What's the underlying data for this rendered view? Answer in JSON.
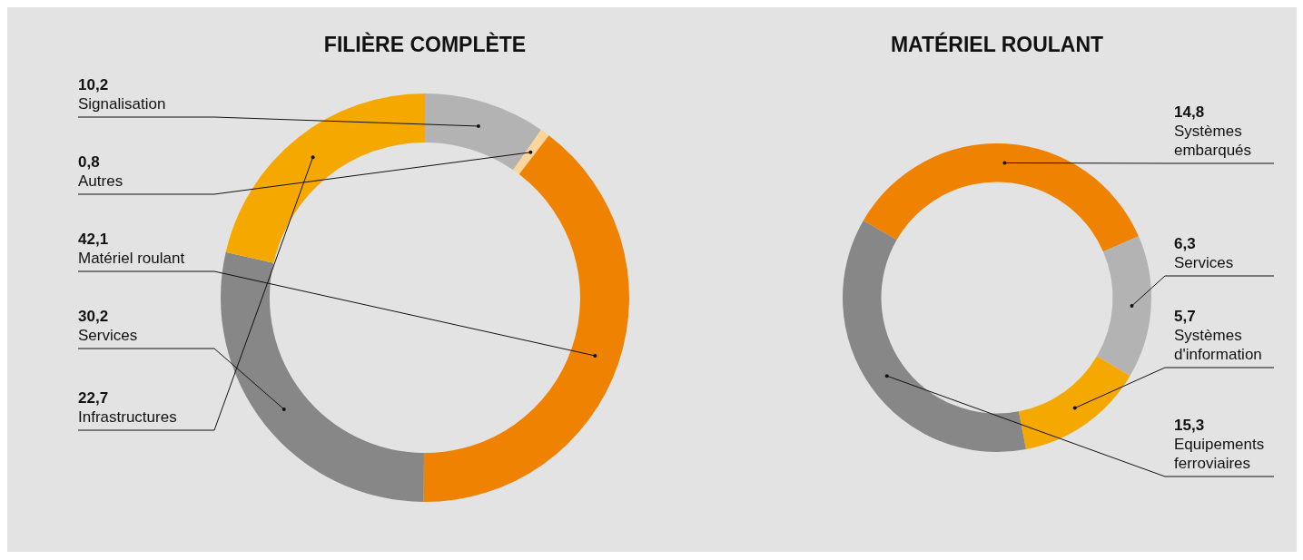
{
  "chart_data": [
    {
      "type": "donut",
      "title": "FILIÈRE COMPLÈTE",
      "categories": [
        "Signalisation",
        "Autres",
        "Matériel roulant",
        "Services",
        "Infrastructures"
      ],
      "values": [
        10.2,
        0.8,
        42.1,
        30.2,
        22.7
      ],
      "colors": [
        "#b3b3b3",
        "#fbd59b",
        "#ef8200",
        "#878787",
        "#f5a800"
      ],
      "value_labels": [
        "10,2",
        "0,8",
        "42,1",
        "30,2",
        "22,7"
      ]
    },
    {
      "type": "donut",
      "title": "MATÉRIEL ROULANT",
      "categories": [
        "Systèmes embarqués",
        "Services",
        "Systèmes d'information",
        "Equipements ferroviaires"
      ],
      "values": [
        14.8,
        6.3,
        5.7,
        15.3
      ],
      "colors": [
        "#ef8200",
        "#b3b3b3",
        "#f5a800",
        "#878787"
      ],
      "value_labels": [
        "14,8",
        "6,3",
        "5,7",
        "15,3"
      ]
    }
  ]
}
